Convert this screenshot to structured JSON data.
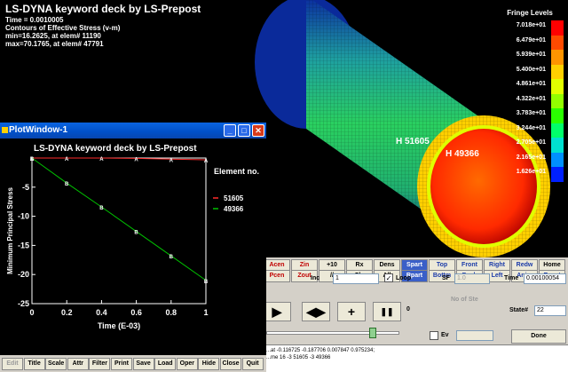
{
  "viewport": {
    "title": "LS-DYNA keyword deck by LS-Prepost",
    "time_line": "Time =   0.0010005",
    "contour_line": "Contours of Effective Stress (v-m)",
    "min_line": "min=16.2625, at elem# 11190",
    "max_line": "max=70.1765, at elem# 47791",
    "marker1": "H 51605",
    "marker2": "H 49366"
  },
  "fringe": {
    "title": "Fringe Levels",
    "levels": [
      "7.018e+01",
      "6.479e+01",
      "5.939e+01",
      "5.400e+01",
      "4.861e+01",
      "4.322e+01",
      "3.783e+01",
      "3.244e+01",
      "2.705e+01",
      "2.165e+01",
      "1.626e+01"
    ],
    "colors": [
      "#ff0000",
      "#ff4a00",
      "#ff9400",
      "#ffd000",
      "#e2ff00",
      "#92ff00",
      "#2aff00",
      "#00ff6a",
      "#00e0d0",
      "#0090ff",
      "#0020ff"
    ]
  },
  "controls": {
    "row1": [
      "Acen",
      "Zin",
      "+10",
      "Rx",
      "Dens",
      "Spart",
      "Top",
      "Front",
      "Right",
      "Redw",
      "Home"
    ],
    "row2": [
      "Pcen",
      "Zout",
      "//",
      "Clp",
      "All",
      "Rpart",
      "Bottm",
      "Back",
      "Left",
      "Anim",
      "Reset"
    ],
    "inc_label": "Inc",
    "inc_value": "1",
    "loop_label": "Loop",
    "sf_label": "SF",
    "sf_value": "1.0",
    "time_label": "Time",
    "time_value": "0.00100054",
    "noofste_label": "No of Ste",
    "state_label": "State#",
    "state_value": "22",
    "zero_label": "0",
    "ev_label": "Ev",
    "done_label": "Done",
    "messages": [
      "...at -0.116725 -0.187706 0.007847 0.975234;",
      "...me 16 -3 51605 -3 49366"
    ]
  },
  "plot_window": {
    "title": "PlotWindow-1",
    "toolbar": [
      "Edit",
      "Title",
      "Scale",
      "Attr",
      "Filter",
      "Print",
      "Save",
      "Load",
      "Oper",
      "Hide",
      "Close",
      "Quit"
    ]
  },
  "chart_data": {
    "type": "line",
    "title": "LS-DYNA keyword deck by LS-Prepost",
    "xlabel": "Time (E-03)",
    "ylabel": "Minimum Principal Stress",
    "xlim": [
      0,
      1
    ],
    "ylim": [
      -25,
      0
    ],
    "xticks": [
      "0",
      "0.2",
      "0.4",
      "0.6",
      "0.8",
      "1"
    ],
    "yticks": [
      "-5",
      "-10",
      "-15",
      "-20",
      "-25"
    ],
    "legend_title": "Element no.",
    "series": [
      {
        "name": "51605",
        "color": "#ff2a2a",
        "marker": "A",
        "x": [
          0,
          0.2,
          0.4,
          0.6,
          0.8,
          1.0
        ],
        "y": [
          0,
          0,
          0,
          -0.05,
          -0.2,
          -0.3
        ]
      },
      {
        "name": "49366",
        "color": "#00c000",
        "marker": "B",
        "x": [
          0,
          0.2,
          0.4,
          0.6,
          0.8,
          1.0
        ],
        "y": [
          0,
          -4.3,
          -8.4,
          -12.6,
          -16.8,
          -21
        ]
      }
    ]
  }
}
